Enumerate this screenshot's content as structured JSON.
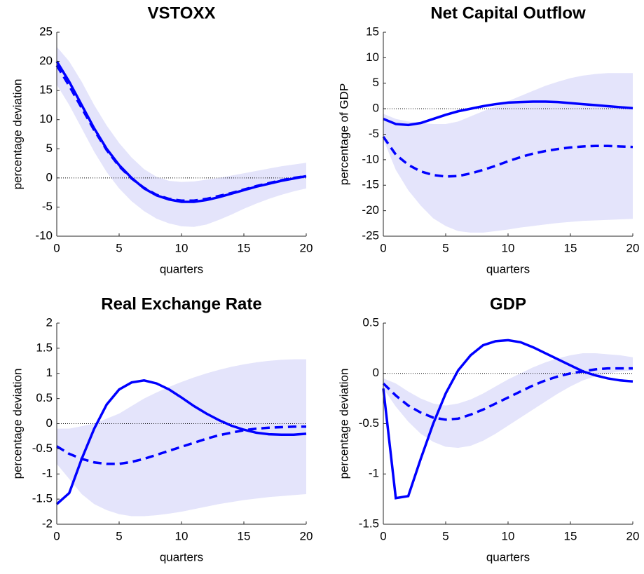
{
  "chart_data": [
    {
      "type": "line",
      "title": "VSTOXX",
      "xlabel": "quarters",
      "ylabel": "percentage deviation",
      "x": [
        0,
        1,
        2,
        3,
        4,
        5,
        6,
        7,
        8,
        9,
        10,
        11,
        12,
        13,
        14,
        15,
        16,
        17,
        18,
        19,
        20
      ],
      "xlim": [
        0,
        20
      ],
      "xticks": [
        0,
        5,
        10,
        15,
        20
      ],
      "ylim": [
        -10,
        25
      ],
      "yticks": [
        -10,
        -5,
        0,
        5,
        10,
        15,
        20,
        25
      ],
      "hline": 0,
      "band": {
        "color": "#e4e4fb",
        "upper": [
          22.5,
          20,
          16.5,
          12.5,
          9,
          6,
          3.5,
          1.5,
          0.2,
          -0.5,
          -0.7,
          -0.6,
          -0.3,
          0,
          0.4,
          0.8,
          1.2,
          1.6,
          2,
          2.3,
          2.6
        ],
        "lower": [
          16,
          12.5,
          8.5,
          4.5,
          1,
          -1.8,
          -4,
          -5.7,
          -7,
          -7.8,
          -8.3,
          -8.4,
          -8,
          -7.2,
          -6.3,
          -5.3,
          -4.4,
          -3.6,
          -2.9,
          -2.3,
          -1.8
        ]
      },
      "series": [
        {
          "color": "#0000ff",
          "linestyle": "solid",
          "values": [
            20,
            16.5,
            12.5,
            8.5,
            5,
            2.2,
            0,
            -1.8,
            -3,
            -3.7,
            -4.1,
            -4.1,
            -3.8,
            -3.3,
            -2.7,
            -2.1,
            -1.5,
            -1,
            -0.5,
            -0.1,
            0.3
          ]
        },
        {
          "color": "#0000ff",
          "linestyle": "dashed",
          "values": [
            19.3,
            15.8,
            12,
            8.2,
            4.8,
            2,
            -0.1,
            -1.7,
            -2.9,
            -3.6,
            -3.9,
            -3.9,
            -3.6,
            -3.1,
            -2.6,
            -2,
            -1.4,
            -0.9,
            -0.4,
            0,
            0.3
          ]
        }
      ]
    },
    {
      "type": "line",
      "title": "Net Capital Outflow",
      "xlabel": "quarters",
      "ylabel": "percentage of GDP",
      "x": [
        0,
        1,
        2,
        3,
        4,
        5,
        6,
        7,
        8,
        9,
        10,
        11,
        12,
        13,
        14,
        15,
        16,
        17,
        18,
        19,
        20
      ],
      "xlim": [
        0,
        20
      ],
      "xticks": [
        0,
        5,
        10,
        15,
        20
      ],
      "ylim": [
        -25,
        15
      ],
      "yticks": [
        -25,
        -20,
        -15,
        -10,
        -5,
        0,
        5,
        10,
        15
      ],
      "hline": 0,
      "band": {
        "color": "#e4e4fb",
        "upper": [
          -1,
          -2,
          -2.5,
          -2.8,
          -3,
          -3,
          -2.5,
          -1.5,
          -0.5,
          0.5,
          1.5,
          2.5,
          3.5,
          4.5,
          5.3,
          6,
          6.5,
          6.8,
          7,
          7,
          7
        ],
        "lower": [
          -6,
          -12,
          -16,
          -19,
          -21.5,
          -23,
          -24,
          -24.3,
          -24.3,
          -24,
          -23.7,
          -23.3,
          -23,
          -22.7,
          -22.4,
          -22.2,
          -22,
          -21.9,
          -21.8,
          -21.7,
          -21.6
        ]
      },
      "series": [
        {
          "color": "#0000ff",
          "linestyle": "solid",
          "values": [
            -2,
            -3,
            -3.2,
            -2.8,
            -2,
            -1.2,
            -0.5,
            0,
            0.5,
            0.9,
            1.2,
            1.3,
            1.4,
            1.4,
            1.3,
            1.1,
            0.9,
            0.7,
            0.5,
            0.3,
            0.1
          ]
        },
        {
          "color": "#0000ff",
          "linestyle": "dashed",
          "values": [
            -5.5,
            -9,
            -11,
            -12.3,
            -13,
            -13.3,
            -13.2,
            -12.7,
            -12,
            -11.2,
            -10.3,
            -9.5,
            -8.8,
            -8.3,
            -7.9,
            -7.6,
            -7.4,
            -7.3,
            -7.3,
            -7.4,
            -7.5
          ]
        }
      ]
    },
    {
      "type": "line",
      "title": "Real Exchange Rate",
      "xlabel": "quarters",
      "ylabel": "percentage deviation",
      "x": [
        0,
        1,
        2,
        3,
        4,
        5,
        6,
        7,
        8,
        9,
        10,
        11,
        12,
        13,
        14,
        15,
        16,
        17,
        18,
        19,
        20
      ],
      "xlim": [
        0,
        20
      ],
      "xticks": [
        0,
        5,
        10,
        15,
        20
      ],
      "ylim": [
        -2,
        2
      ],
      "yticks": [
        -2,
        -1.5,
        -1,
        -0.5,
        0,
        0.5,
        1,
        1.5,
        2
      ],
      "hline": 0,
      "band": {
        "color": "#e4e4fb",
        "upper": [
          -0.1,
          -0.1,
          -0.05,
          0,
          0.1,
          0.2,
          0.35,
          0.5,
          0.62,
          0.73,
          0.83,
          0.92,
          1,
          1.07,
          1.13,
          1.18,
          1.22,
          1.25,
          1.27,
          1.28,
          1.28
        ],
        "lower": [
          -0.8,
          -1.1,
          -1.4,
          -1.6,
          -1.72,
          -1.8,
          -1.84,
          -1.84,
          -1.82,
          -1.79,
          -1.75,
          -1.7,
          -1.65,
          -1.6,
          -1.56,
          -1.52,
          -1.49,
          -1.46,
          -1.44,
          -1.42,
          -1.4
        ]
      },
      "series": [
        {
          "color": "#0000ff",
          "linestyle": "solid",
          "values": [
            -1.6,
            -1.38,
            -0.7,
            -0.1,
            0.38,
            0.68,
            0.82,
            0.86,
            0.8,
            0.68,
            0.52,
            0.35,
            0.2,
            0.07,
            -0.04,
            -0.12,
            -0.18,
            -0.21,
            -0.22,
            -0.22,
            -0.2
          ]
        },
        {
          "color": "#0000ff",
          "linestyle": "dashed",
          "values": [
            -0.45,
            -0.6,
            -0.7,
            -0.77,
            -0.8,
            -0.8,
            -0.76,
            -0.7,
            -0.62,
            -0.54,
            -0.46,
            -0.38,
            -0.3,
            -0.23,
            -0.18,
            -0.13,
            -0.1,
            -0.08,
            -0.07,
            -0.06,
            -0.06
          ]
        }
      ]
    },
    {
      "type": "line",
      "title": "GDP",
      "xlabel": "quarters",
      "ylabel": "percentage deviation",
      "x": [
        0,
        1,
        2,
        3,
        4,
        5,
        6,
        7,
        8,
        9,
        10,
        11,
        12,
        13,
        14,
        15,
        16,
        17,
        18,
        19,
        20
      ],
      "xlim": [
        0,
        20
      ],
      "xticks": [
        0,
        5,
        10,
        15,
        20
      ],
      "ylim": [
        -1.5,
        0.5
      ],
      "yticks": [
        -1.5,
        -1,
        -0.5,
        0,
        0.5
      ],
      "hline": 0,
      "band": {
        "color": "#e4e4fb",
        "upper": [
          -0.05,
          -0.1,
          -0.18,
          -0.25,
          -0.3,
          -0.32,
          -0.3,
          -0.26,
          -0.2,
          -0.13,
          -0.06,
          0,
          0.06,
          0.11,
          0.15,
          0.18,
          0.2,
          0.2,
          0.19,
          0.18,
          0.16
        ],
        "lower": [
          -0.15,
          -0.33,
          -0.48,
          -0.6,
          -0.68,
          -0.73,
          -0.74,
          -0.72,
          -0.67,
          -0.6,
          -0.52,
          -0.44,
          -0.36,
          -0.28,
          -0.2,
          -0.13,
          -0.07,
          -0.03,
          0,
          0.02,
          0.03
        ]
      },
      "series": [
        {
          "color": "#0000ff",
          "linestyle": "solid",
          "values": [
            -0.15,
            -1.24,
            -1.22,
            -0.85,
            -0.5,
            -0.2,
            0.03,
            0.18,
            0.28,
            0.32,
            0.33,
            0.31,
            0.26,
            0.2,
            0.14,
            0.08,
            0.02,
            -0.02,
            -0.05,
            -0.07,
            -0.08
          ]
        },
        {
          "color": "#0000ff",
          "linestyle": "dashed",
          "values": [
            -0.1,
            -0.22,
            -0.32,
            -0.39,
            -0.44,
            -0.46,
            -0.45,
            -0.41,
            -0.36,
            -0.3,
            -0.24,
            -0.18,
            -0.12,
            -0.07,
            -0.03,
            0,
            0.02,
            0.04,
            0.05,
            0.05,
            0.05
          ]
        }
      ]
    }
  ]
}
